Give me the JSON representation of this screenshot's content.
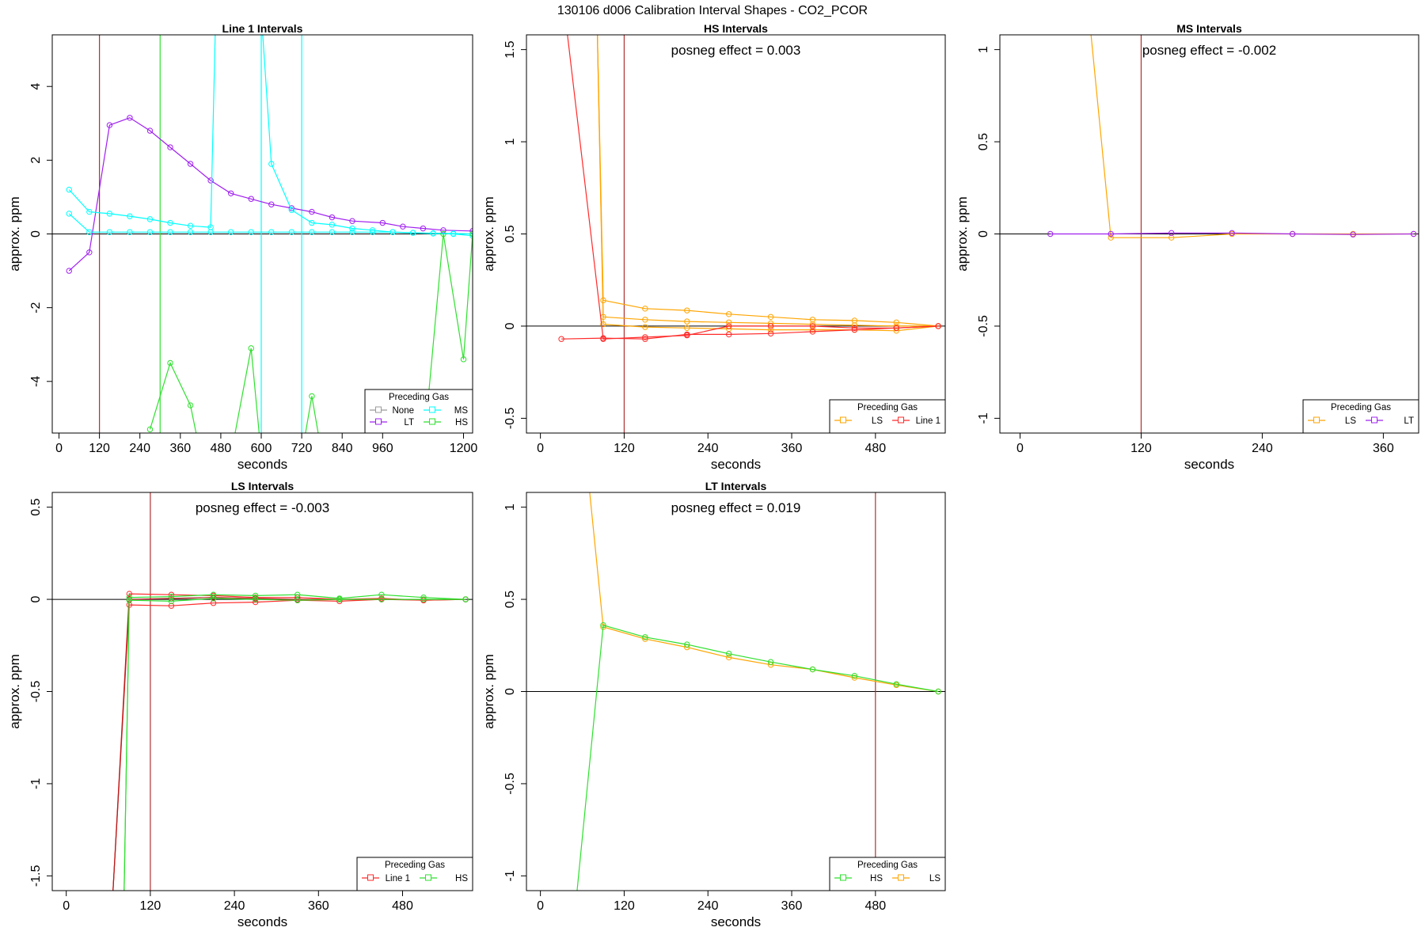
{
  "title": "130106  d006   Calibration Interval Shapes - CO2_PCOR",
  "chart_data": [
    {
      "type": "line",
      "title": "Line 1 Intervals",
      "xlabel": "seconds",
      "ylabel": "approx. ppm",
      "xlim": [
        -20,
        1227
      ],
      "ylim": [
        -5.4,
        5.4
      ],
      "xticks": [
        0,
        120,
        240,
        360,
        480,
        600,
        720,
        840,
        960,
        1200
      ],
      "yticks": [
        -4,
        -2,
        0,
        2,
        4
      ],
      "hline": 0,
      "vlines": [
        {
          "x": 120,
          "color": "#b03030"
        },
        {
          "x": 300,
          "color": "#2ee02e"
        },
        {
          "x": 600,
          "color": "#00ffff"
        },
        {
          "x": 720,
          "color": "#00ffff"
        }
      ],
      "legend": {
        "title": "Preceding Gas",
        "position": "bottom-right",
        "columns": 2,
        "entries": [
          "None",
          "MS",
          "LT",
          "HS"
        ]
      },
      "series": [
        {
          "name": "LT",
          "color": "#a020f0",
          "x": [
            30,
            90,
            150,
            210,
            270,
            330,
            390,
            450,
            510,
            570,
            630,
            690,
            750,
            810,
            870,
            960,
            1020,
            1080,
            1140,
            1227
          ],
          "y": [
            -1.0,
            -0.5,
            2.95,
            3.15,
            2.8,
            2.35,
            1.9,
            1.45,
            1.1,
            0.95,
            0.8,
            0.7,
            0.6,
            0.45,
            0.35,
            0.3,
            0.2,
            0.15,
            0.1,
            0.08
          ]
        },
        {
          "name": "MS",
          "color": "#00ffff",
          "x": [
            30,
            90,
            150,
            210,
            270,
            330,
            390,
            450,
            510,
            570,
            630,
            690,
            750,
            810,
            870,
            930,
            990,
            1050,
            1110,
            1170,
            1227
          ],
          "y": [
            0.55,
            0.05,
            0.05,
            0.05,
            0.05,
            0.05,
            0.05,
            0.05,
            0.05,
            0.05,
            0.05,
            0.05,
            0.05,
            0.05,
            0.05,
            0.05,
            0.05,
            0.03,
            0.02,
            0.01,
            0.0
          ]
        },
        {
          "name": "MS",
          "color": "#00ffff",
          "x": [
            30,
            90,
            150,
            210,
            270,
            330,
            390,
            450,
            465,
            600,
            630,
            690,
            750,
            810,
            870,
            930,
            990,
            1050,
            1110,
            1170,
            1227
          ],
          "y": [
            1.2,
            0.6,
            0.55,
            0.48,
            0.4,
            0.3,
            0.22,
            0.18,
            6.0,
            6.0,
            1.9,
            0.65,
            0.3,
            0.25,
            0.15,
            0.1,
            0.05,
            0.03,
            0.01,
            0.0,
            -0.05
          ]
        },
        {
          "name": "HS",
          "color": "#2ee02e",
          "x": [
            270,
            330,
            390,
            420,
            510,
            570,
            600,
            720,
            750,
            780,
            1080,
            1140,
            1200,
            1227
          ],
          "y": [
            -5.3,
            -3.5,
            -4.65,
            -6.0,
            -6.0,
            -3.1,
            -6.0,
            -6.0,
            -4.4,
            -6.0,
            -6.0,
            0.0,
            -3.4,
            0.0
          ]
        }
      ]
    },
    {
      "type": "line",
      "title": "HS Intervals",
      "xlabel": "seconds",
      "ylabel": "approx. ppm",
      "xlim": [
        -20,
        580
      ],
      "ylim": [
        -0.58,
        1.58
      ],
      "xticks": [
        0,
        120,
        240,
        360,
        480
      ],
      "yticks": [
        -0.5,
        0.0,
        0.5,
        1.0,
        1.5
      ],
      "hline": 0,
      "vlines": [
        {
          "x": 120,
          "color": "#b03030"
        }
      ],
      "annotation": "posneg effect = 0.003",
      "legend": {
        "title": "Preceding Gas",
        "position": "bottom-right",
        "columns": 2,
        "entries": [
          "LS",
          "Line 1"
        ]
      },
      "series": [
        {
          "name": "LS",
          "color": "#ffa500",
          "x": [
            81,
            90,
            150,
            210,
            270,
            330,
            390,
            450,
            510,
            570
          ],
          "y": [
            1.7,
            0.14,
            0.095,
            0.085,
            0.065,
            0.05,
            0.035,
            0.03,
            0.02,
            0.0
          ]
        },
        {
          "name": "LS",
          "color": "#ffa500",
          "x": [
            81,
            90,
            150,
            210,
            270,
            330,
            390,
            450,
            510,
            570
          ],
          "y": [
            1.7,
            0.05,
            0.035,
            0.025,
            0.02,
            0.015,
            0.01,
            0.005,
            0.0,
            0.0
          ]
        },
        {
          "name": "LS",
          "color": "#ffa500",
          "x": [
            81,
            90,
            150,
            210,
            270,
            330,
            390,
            450,
            510,
            570
          ],
          "y": [
            1.7,
            0.01,
            -0.005,
            -0.01,
            -0.015,
            -0.02,
            -0.02,
            -0.02,
            -0.025,
            0.0
          ]
        },
        {
          "name": "Line 1",
          "color": "#ff2a2a",
          "x": [
            35,
            90,
            150,
            210,
            270,
            330,
            390,
            450,
            510,
            570
          ],
          "y": [
            1.7,
            -0.07,
            -0.06,
            -0.05,
            0.0,
            0.0,
            0.0,
            -0.01,
            -0.01,
            0.0
          ]
        },
        {
          "name": "Line 1",
          "color": "#ff2a2a",
          "x": [
            30,
            90,
            150,
            210,
            270,
            330,
            390,
            450,
            510,
            570
          ],
          "y": [
            -0.07,
            -0.065,
            -0.07,
            -0.045,
            -0.045,
            -0.04,
            -0.03,
            -0.02,
            -0.01,
            0.0
          ]
        }
      ]
    },
    {
      "type": "line",
      "title": "MS Intervals",
      "xlabel": "seconds",
      "ylabel": "approx. ppm",
      "xlim": [
        -20,
        395
      ],
      "ylim": [
        -1.08,
        1.08
      ],
      "xticks": [
        0,
        120,
        240,
        360
      ],
      "yticks": [
        -1.0,
        -0.5,
        0.0,
        0.5,
        1.0
      ],
      "hline": 0,
      "vlines": [
        {
          "x": 120,
          "color": "#b03030"
        }
      ],
      "annotation": "posneg effect = -0.002",
      "legend": {
        "title": "Preceding Gas",
        "position": "bottom-right",
        "columns": 2,
        "entries": [
          "LS",
          "LT"
        ]
      },
      "series": [
        {
          "name": "LS",
          "color": "#ffa500",
          "x": [
            70,
            90,
            150,
            210,
            270,
            330,
            390
          ],
          "y": [
            1.1,
            -0.02,
            -0.02,
            0.0,
            0.0,
            0.0,
            0.0
          ]
        },
        {
          "name": "LT",
          "color": "#a020f0",
          "x": [
            30,
            90,
            150,
            210,
            270,
            330,
            390
          ],
          "y": [
            0.0,
            0.0,
            0.005,
            0.005,
            0.0,
            -0.003,
            0.0
          ]
        }
      ]
    },
    {
      "type": "line",
      "title": "LS Intervals",
      "xlabel": "seconds",
      "ylabel": "approx. ppm",
      "xlim": [
        -20,
        580
      ],
      "ylim": [
        -1.58,
        0.58
      ],
      "xticks": [
        0,
        120,
        240,
        360,
        480
      ],
      "yticks": [
        -1.5,
        -1.0,
        -0.5,
        0.0,
        0.5
      ],
      "hline": 0,
      "vlines": [
        {
          "x": 120,
          "color": "#b03030"
        }
      ],
      "annotation": "posneg effect = -0.003",
      "legend": {
        "title": "Preceding Gas",
        "position": "bottom-right",
        "columns": 2,
        "entries": [
          "Line 1",
          "HS"
        ]
      },
      "series": [
        {
          "name": "Line 1",
          "color": "#ff2a2a",
          "x": [
            65,
            90,
            150,
            210,
            270,
            330,
            390,
            450,
            510,
            570
          ],
          "y": [
            -1.7,
            0.03,
            0.025,
            0.02,
            0.01,
            0.01,
            0.0,
            0.005,
            -0.005,
            0.0
          ]
        },
        {
          "name": "Line 1",
          "color": "#ff2a2a",
          "x": [
            65,
            90,
            150,
            210,
            270,
            330,
            390,
            450,
            510,
            570
          ],
          "y": [
            -1.7,
            -0.03,
            -0.035,
            -0.02,
            -0.015,
            -0.005,
            -0.01,
            0.0,
            -0.005,
            0.0
          ]
        },
        {
          "name": "Line 1",
          "color": "#b02020",
          "x": [
            65,
            90,
            150,
            210,
            270,
            330,
            390,
            450,
            510,
            570
          ],
          "y": [
            -1.7,
            0.0,
            0.005,
            0.01,
            0.005,
            0.0,
            0.0,
            0.0,
            0.0,
            0.0
          ]
        },
        {
          "name": "HS",
          "color": "#2ee02e",
          "x": [
            82,
            90,
            150,
            210,
            270,
            330,
            390,
            450,
            510,
            570
          ],
          "y": [
            -1.7,
            0.01,
            0.015,
            0.025,
            0.02,
            0.025,
            0.005,
            0.025,
            0.01,
            0.0
          ]
        },
        {
          "name": "HS",
          "color": "#2ee02e",
          "x": [
            82,
            90,
            150,
            210,
            270,
            330,
            390,
            450,
            510,
            570
          ],
          "y": [
            -1.7,
            -0.005,
            -0.01,
            0.005,
            0.0,
            -0.005,
            0.0,
            0.0,
            0.0,
            0.0
          ]
        }
      ]
    },
    {
      "type": "line",
      "title": "LT Intervals",
      "xlabel": "seconds",
      "ylabel": "approx. ppm",
      "xlim": [
        -20,
        580
      ],
      "ylim": [
        -1.08,
        1.08
      ],
      "xticks": [
        0,
        120,
        240,
        360,
        480
      ],
      "yticks": [
        -1.0,
        -0.5,
        0.0,
        0.5,
        1.0
      ],
      "hline": 0,
      "vlines": [
        {
          "x": 480,
          "color": "#b03030"
        }
      ],
      "annotation": "posneg effect = 0.019",
      "legend": {
        "title": "Preceding Gas",
        "position": "bottom-right",
        "columns": 2,
        "entries": [
          "HS",
          "LS"
        ]
      },
      "series": [
        {
          "name": "LS",
          "color": "#ffa500",
          "x": [
            70,
            90,
            150,
            210,
            270,
            330,
            390,
            450,
            510,
            570
          ],
          "y": [
            1.1,
            0.35,
            0.285,
            0.24,
            0.185,
            0.145,
            0.12,
            0.075,
            0.035,
            0.0
          ]
        },
        {
          "name": "HS",
          "color": "#2ee02e",
          "x": [
            52,
            90,
            150,
            210,
            270,
            330,
            390,
            450,
            510,
            570
          ],
          "y": [
            -1.1,
            0.36,
            0.295,
            0.255,
            0.205,
            0.16,
            0.12,
            0.085,
            0.04,
            0.0
          ]
        }
      ]
    }
  ]
}
